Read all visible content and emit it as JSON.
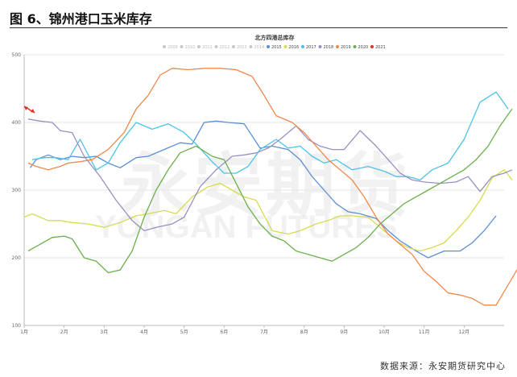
{
  "figure": {
    "title": "图 6、锦州港口玉米库存",
    "source": "数据来源：永安期货研究中心"
  },
  "watermark": {
    "cn": "永安期货",
    "en": "YONGAN FUTURES",
    "left_fragment": "FUTU"
  },
  "colors": {
    "2009": "#c8c8c8",
    "2010": "#c8c8c8",
    "2011": "#c8c8c8",
    "2012": "#c8c8c8",
    "2013": "#c8c8c8",
    "2014": "#c8c8c8",
    "2015": "#5b8fd4",
    "2016": "#d6dc4e",
    "2017": "#4cc3e6",
    "2018": "#9b8fc2",
    "2019": "#f0884a",
    "2020": "#6ab04c",
    "2021": "#e03020",
    "grid": "#e6e6e6",
    "axis": "#bbbbbb"
  },
  "chart_data": {
    "type": "line",
    "title": "北方四港总库存",
    "legend_position": "top",
    "ylim": [
      100,
      500
    ],
    "yticks": [
      100,
      200,
      300,
      400,
      500
    ],
    "xlim": [
      0,
      12
    ],
    "x_tick_labels": [
      "1月",
      "2月",
      "3月",
      "4月",
      "5月",
      "6月",
      "7月",
      "8月",
      "9月",
      "10月",
      "11月",
      "12月"
    ],
    "grid": true,
    "series": [
      {
        "name": "2009",
        "values": []
      },
      {
        "name": "2010",
        "values": []
      },
      {
        "name": "2011",
        "values": []
      },
      {
        "name": "2012",
        "values": []
      },
      {
        "name": "2013",
        "values": []
      },
      {
        "name": "2014",
        "values": []
      },
      {
        "name": "2015",
        "x": [
          0.15,
          0.3,
          0.6,
          0.9,
          1.2,
          1.5,
          1.8,
          2.1,
          2.4,
          2.8,
          3.1,
          3.5,
          3.9,
          4.2,
          4.5,
          4.8,
          5.1,
          5.5,
          5.9,
          6.2,
          6.6,
          6.9,
          7.2,
          7.5,
          7.8,
          8.1,
          8.4,
          8.8,
          9.1,
          9.4,
          9.8,
          10.1,
          10.5,
          10.9,
          11.2,
          11.5,
          11.8
        ],
        "values": [
          333,
          345,
          352,
          345,
          350,
          348,
          350,
          340,
          333,
          348,
          350,
          360,
          370,
          368,
          400,
          402,
          400,
          398,
          362,
          365,
          360,
          345,
          320,
          300,
          280,
          268,
          265,
          258,
          240,
          225,
          210,
          200,
          210,
          210,
          222,
          240,
          262
        ]
      },
      {
        "name": "2016",
        "x": [
          0.0,
          0.2,
          0.6,
          0.9,
          1.2,
          1.6,
          2.0,
          2.4,
          2.8,
          3.1,
          3.5,
          3.8,
          4.2,
          4.6,
          4.9,
          5.2,
          5.5,
          5.8,
          6.2,
          6.6,
          6.9,
          7.3,
          7.6,
          7.9,
          8.2,
          8.6,
          9.0,
          9.3,
          9.6,
          9.9,
          10.2,
          10.5,
          10.8,
          11.1,
          11.4,
          11.7,
          12.0,
          12.2
        ],
        "values": [
          260,
          265,
          255,
          255,
          252,
          250,
          245,
          252,
          262,
          265,
          270,
          265,
          290,
          305,
          310,
          300,
          290,
          285,
          240,
          235,
          240,
          250,
          255,
          262,
          262,
          260,
          240,
          225,
          215,
          210,
          215,
          222,
          240,
          260,
          285,
          318,
          330,
          315
        ]
      },
      {
        "name": "2017",
        "x": [
          0.2,
          0.5,
          0.8,
          1.1,
          1.4,
          1.8,
          2.1,
          2.4,
          2.8,
          3.2,
          3.6,
          4.0,
          4.3,
          4.7,
          5.0,
          5.3,
          5.6,
          5.9,
          6.3,
          6.6,
          6.9,
          7.2,
          7.5,
          7.8,
          8.2,
          8.6,
          9.0,
          9.3,
          9.6,
          9.9,
          10.2,
          10.6,
          11.0,
          11.4,
          11.8,
          12.1
        ],
        "values": [
          345,
          348,
          348,
          345,
          375,
          330,
          340,
          370,
          400,
          390,
          398,
          385,
          368,
          342,
          325,
          325,
          335,
          360,
          375,
          362,
          365,
          350,
          340,
          345,
          330,
          335,
          328,
          320,
          320,
          315,
          330,
          340,
          375,
          430,
          445,
          420
        ]
      },
      {
        "name": "2018",
        "x": [
          0.1,
          0.4,
          0.7,
          0.9,
          1.2,
          1.5,
          1.9,
          2.3,
          2.7,
          3.0,
          3.3,
          3.7,
          4.0,
          4.4,
          4.8,
          5.2,
          5.5,
          5.8,
          6.1,
          6.4,
          6.8,
          7.1,
          7.4,
          7.7,
          8.0,
          8.4,
          8.8,
          9.1,
          9.4,
          9.7,
          10.0,
          10.4,
          10.8,
          11.1,
          11.4,
          11.7,
          12.0,
          12.2
        ],
        "values": [
          405,
          402,
          400,
          388,
          385,
          350,
          320,
          285,
          255,
          240,
          245,
          250,
          260,
          305,
          330,
          350,
          352,
          355,
          362,
          375,
          395,
          375,
          365,
          360,
          360,
          388,
          365,
          345,
          325,
          315,
          312,
          310,
          312,
          320,
          298,
          320,
          325,
          330
        ]
      },
      {
        "name": "2019",
        "x": [
          0.1,
          0.3,
          0.6,
          0.9,
          1.1,
          1.4,
          1.7,
          2.1,
          2.5,
          2.8,
          3.1,
          3.4,
          3.7,
          4.1,
          4.5,
          4.9,
          5.3,
          5.7,
          6.0,
          6.3,
          6.7,
          7.0,
          7.3,
          7.6,
          7.9,
          8.2,
          8.5,
          8.8,
          9.1,
          9.4,
          9.7,
          10.0,
          10.3,
          10.6,
          10.9,
          11.2,
          11.5,
          11.8,
          12.1,
          12.4
        ],
        "values": [
          340,
          335,
          330,
          335,
          340,
          342,
          345,
          360,
          385,
          420,
          440,
          470,
          480,
          478,
          480,
          480,
          478,
          468,
          440,
          410,
          400,
          385,
          365,
          345,
          330,
          315,
          290,
          260,
          235,
          220,
          205,
          180,
          165,
          148,
          145,
          140,
          130,
          130,
          160,
          190
        ]
      },
      {
        "name": "2020",
        "x": [
          0.1,
          0.4,
          0.7,
          1.0,
          1.2,
          1.5,
          1.8,
          2.1,
          2.4,
          2.7,
          3.0,
          3.3,
          3.6,
          3.9,
          4.3,
          4.7,
          5.0,
          5.3,
          5.6,
          5.9,
          6.2,
          6.5,
          6.8,
          7.1,
          7.4,
          7.7,
          8.0,
          8.3,
          8.6,
          8.9,
          9.2,
          9.5,
          9.8,
          10.1,
          10.4,
          10.7,
          11.0,
          11.3,
          11.6,
          11.9,
          12.2
        ],
        "values": [
          210,
          220,
          230,
          232,
          228,
          200,
          195,
          178,
          182,
          210,
          260,
          300,
          330,
          355,
          365,
          350,
          345,
          310,
          275,
          250,
          232,
          225,
          210,
          205,
          200,
          195,
          205,
          215,
          230,
          250,
          265,
          280,
          290,
          300,
          310,
          320,
          330,
          345,
          365,
          395,
          420
        ]
      },
      {
        "name": "2021",
        "values": []
      }
    ]
  }
}
